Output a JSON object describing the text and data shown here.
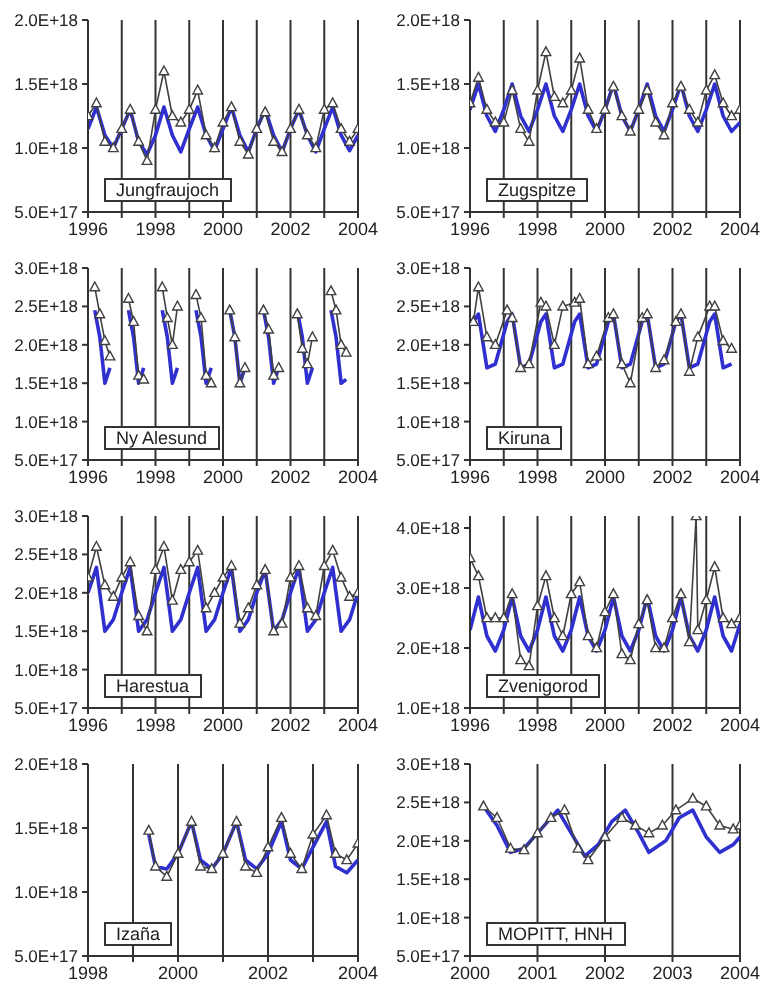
{
  "chart_data": [
    {
      "type": "line",
      "title": "Jungfraujoch",
      "grid": "x",
      "xlim": [
        1996,
        2004
      ],
      "xticks": [
        1996,
        {
          "value": 1997,
          "label": null
        },
        1998,
        {
          "value": 1999,
          "label": null
        },
        2000,
        {
          "value": 2001,
          "label": null
        },
        2002,
        {
          "value": 2003,
          "label": null
        },
        2004
      ],
      "ylim": [
        5e+17,
        2e+18
      ],
      "yticks": [
        {
          "value": 5e+17,
          "label": "5.0E+17"
        },
        {
          "value": 1e+18,
          "label": "1.0E+18"
        },
        {
          "value": 1.5e+18,
          "label": "1.5E+18"
        },
        {
          "value": 2e+18,
          "label": "2.0E+18"
        }
      ],
      "series": [
        {
          "color": "#3030d0",
          "marker": "none",
          "x": [
            1996,
            1996.25,
            1996.5,
            1996.75,
            1997,
            1997.25,
            1997.5,
            1997.75,
            1998,
            1998.25,
            1998.5,
            1998.75,
            1999,
            1999.25,
            1999.5,
            1999.75,
            2000,
            2000.25,
            2000.5,
            2000.75,
            2001,
            2001.25,
            2001.5,
            2001.75,
            2002,
            2002.25,
            2002.5,
            2002.75,
            2003,
            2003.25,
            2003.5,
            2003.75,
            2004
          ],
          "values": [
            1.15e+18,
            1.32e+18,
            1.1e+18,
            1e+18,
            1.15e+18,
            1.3e+18,
            1.05e+18,
            9.5e+17,
            1.1e+18,
            1.32e+18,
            1.1e+18,
            9.7e+17,
            1.15e+18,
            1.32e+18,
            1.1e+18,
            9.8e+17,
            1.15e+18,
            1.32e+18,
            1.1e+18,
            9.7e+17,
            1.15e+18,
            1.3e+18,
            1.1e+18,
            9.7e+17,
            1.15e+18,
            1.3e+18,
            1.1e+18,
            9.7e+17,
            1.15e+18,
            1.32e+18,
            1.1e+18,
            9.8e+17,
            1.1e+18
          ]
        },
        {
          "color": "#404040",
          "marker": "triangle",
          "x": [
            1996,
            1996.25,
            1996.5,
            1996.75,
            1997,
            1997.25,
            1997.5,
            1997.75,
            1998,
            1998.25,
            1998.5,
            1998.75,
            1999,
            1999.25,
            1999.5,
            1999.75,
            2000,
            2000.25,
            2000.5,
            2000.75,
            2001,
            2001.25,
            2001.5,
            2001.75,
            2002,
            2002.25,
            2002.5,
            2002.75,
            2003,
            2003.25,
            2003.5,
            2003.75,
            2004
          ],
          "values": [
            1.25e+18,
            1.35e+18,
            1.05e+18,
            1e+18,
            1.15e+18,
            1.3e+18,
            1.05e+18,
            9e+17,
            1.3e+18,
            1.6e+18,
            1.25e+18,
            1.2e+18,
            1.3e+18,
            1.45e+18,
            1.1e+18,
            1e+18,
            1.2e+18,
            1.32e+18,
            1.05e+18,
            9.5e+17,
            1.15e+18,
            1.28e+18,
            1.05e+18,
            9.7e+17,
            1.15e+18,
            1.3e+18,
            1.1e+18,
            1e+18,
            1.3e+18,
            1.35e+18,
            1.15e+18,
            1.05e+18,
            1.15e+18
          ]
        }
      ]
    },
    {
      "type": "line",
      "title": "Zugspitze",
      "grid": "x",
      "xlim": [
        1996,
        2004
      ],
      "xticks": [
        1996,
        {
          "value": 1997,
          "label": null
        },
        1998,
        {
          "value": 1999,
          "label": null
        },
        2000,
        {
          "value": 2001,
          "label": null
        },
        2002,
        {
          "value": 2003,
          "label": null
        },
        2004
      ],
      "ylim": [
        5e+17,
        2e+18
      ],
      "yticks": [
        {
          "value": 5e+17,
          "label": "5.0E+17"
        },
        {
          "value": 1e+18,
          "label": "1.0E+18"
        },
        {
          "value": 1.5e+18,
          "label": "1.5E+18"
        },
        {
          "value": 2e+18,
          "label": "2.0E+18"
        }
      ],
      "series": [
        {
          "color": "#3030d0",
          "marker": "none",
          "x": [
            1996,
            1996.25,
            1996.5,
            1996.75,
            1997,
            1997.25,
            1997.5,
            1997.75,
            1998,
            1998.25,
            1998.5,
            1998.75,
            1999,
            1999.25,
            1999.5,
            1999.75,
            2000,
            2000.25,
            2000.5,
            2000.75,
            2001,
            2001.25,
            2001.5,
            2001.75,
            2002,
            2002.25,
            2002.5,
            2002.75,
            2003,
            2003.25,
            2003.5,
            2003.75,
            2004
          ],
          "values": [
            1.3e+18,
            1.5e+18,
            1.25e+18,
            1.13e+18,
            1.3e+18,
            1.5e+18,
            1.25e+18,
            1.13e+18,
            1.3e+18,
            1.5e+18,
            1.25e+18,
            1.13e+18,
            1.3e+18,
            1.5e+18,
            1.25e+18,
            1.13e+18,
            1.3e+18,
            1.5e+18,
            1.25e+18,
            1.13e+18,
            1.3e+18,
            1.5e+18,
            1.25e+18,
            1.13e+18,
            1.3e+18,
            1.5e+18,
            1.25e+18,
            1.13e+18,
            1.3e+18,
            1.5e+18,
            1.25e+18,
            1.13e+18,
            1.2e+18
          ]
        },
        {
          "color": "#404040",
          "marker": "triangle",
          "x": [
            1996,
            1996.25,
            1996.5,
            1996.75,
            1997,
            1997.25,
            1997.5,
            1997.75,
            1998,
            1998.25,
            1998.5,
            1998.75,
            1999,
            1999.25,
            1999.5,
            1999.75,
            2000,
            2000.25,
            2000.5,
            2000.75,
            2001,
            2001.25,
            2001.5,
            2001.75,
            2002,
            2002.25,
            2002.5,
            2002.75,
            2003,
            2003.25,
            2003.5,
            2003.75,
            2004
          ],
          "values": [
            1.35e+18,
            1.55e+18,
            1.3e+18,
            1.2e+18,
            1.2e+18,
            1.45e+18,
            1.15e+18,
            1.05e+18,
            1.45e+18,
            1.75e+18,
            1.4e+18,
            1.35e+18,
            1.45e+18,
            1.7e+18,
            1.3e+18,
            1.15e+18,
            1.3e+18,
            1.48e+18,
            1.25e+18,
            1.13e+18,
            1.3e+18,
            1.45e+18,
            1.2e+18,
            1.1e+18,
            1.35e+18,
            1.48e+18,
            1.3e+18,
            1.2e+18,
            1.45e+18,
            1.57e+18,
            1.35e+18,
            1.25e+18,
            1.3e+18
          ]
        }
      ]
    },
    {
      "type": "line",
      "title": "Ny Alesund",
      "grid": "x",
      "xlim": [
        1996,
        2004
      ],
      "xticks": [
        1996,
        {
          "value": 1997,
          "label": null
        },
        1998,
        {
          "value": 1999,
          "label": null
        },
        2000,
        {
          "value": 2001,
          "label": null
        },
        2002,
        {
          "value": 2003,
          "label": null
        },
        2004
      ],
      "ylim": [
        5e+17,
        3e+18
      ],
      "yticks": [
        {
          "value": 5e+17,
          "label": "5.0E+17"
        },
        {
          "value": 1e+18,
          "label": "1.0E+18"
        },
        {
          "value": 1.5e+18,
          "label": "1.5E+18"
        },
        {
          "value": 2e+18,
          "label": "2.0E+18"
        },
        {
          "value": 2.5e+18,
          "label": "2.5E+18"
        },
        {
          "value": 3e+18,
          "label": "3.0E+18"
        }
      ],
      "series": [
        {
          "color": "#3030d0",
          "marker": "none",
          "x": [
            1996.2,
            1996.35,
            1996.5,
            1996.65,
            1996.85,
            1997.2,
            1997.35,
            1997.5,
            1997.65,
            1997.85,
            1998.2,
            1998.35,
            1998.5,
            1998.65,
            1998.85,
            1999.2,
            1999.35,
            1999.5,
            1999.65,
            1999.85,
            2000.2,
            2000.35,
            2000.5,
            2000.65,
            2000.85,
            2001.2,
            2001.35,
            2001.5,
            2001.65,
            2001.85,
            2002.2,
            2002.35,
            2002.5,
            2002.65,
            2002.85,
            2003.2,
            2003.35,
            2003.5,
            2003.65
          ],
          "values": [
            2.45e+18,
            2.1e+18,
            1.5e+18,
            1.7e+18,
            null,
            2.45e+18,
            2.1e+18,
            1.5e+18,
            1.7e+18,
            null,
            2.45e+18,
            2.1e+18,
            1.5e+18,
            1.7e+18,
            null,
            2.45e+18,
            2.1e+18,
            1.5e+18,
            1.7e+18,
            null,
            2.45e+18,
            2.1e+18,
            1.5e+18,
            1.7e+18,
            null,
            2.45e+18,
            2.1e+18,
            1.5e+18,
            1.7e+18,
            null,
            2.45e+18,
            2.1e+18,
            1.5e+18,
            1.7e+18,
            null,
            2.45e+18,
            2.1e+18,
            1.5e+18,
            1.55e+18
          ]
        },
        {
          "color": "#404040",
          "marker": "triangle",
          "x": [
            1996.2,
            1996.35,
            1996.5,
            1996.65,
            1996.85,
            1997.2,
            1997.35,
            1997.5,
            1997.65,
            1997.85,
            1998.2,
            1998.35,
            1998.5,
            1998.65,
            1998.85,
            1999.2,
            1999.35,
            1999.5,
            1999.65,
            1999.85,
            2000.2,
            2000.35,
            2000.5,
            2000.65,
            2000.85,
            2001.2,
            2001.35,
            2001.5,
            2001.65,
            2001.85,
            2002.2,
            2002.35,
            2002.5,
            2002.65,
            2002.85,
            2003.2,
            2003.35,
            2003.5,
            2003.65
          ],
          "values": [
            2.75e+18,
            2.4e+18,
            2.05e+18,
            1.85e+18,
            null,
            2.6e+18,
            2.3e+18,
            1.6e+18,
            1.55e+18,
            null,
            2.75e+18,
            2.35e+18,
            2e+18,
            2.5e+18,
            null,
            2.65e+18,
            2.35e+18,
            1.6e+18,
            1.5e+18,
            null,
            2.45e+18,
            2.1e+18,
            1.5e+18,
            1.7e+18,
            null,
            2.45e+18,
            2.2e+18,
            1.6e+18,
            1.7e+18,
            null,
            2.4e+18,
            1.95e+18,
            1.75e+18,
            2.1e+18,
            null,
            2.7e+18,
            2.45e+18,
            2e+18,
            1.9e+18
          ]
        }
      ]
    },
    {
      "type": "line",
      "title": "Kiruna",
      "grid": "x",
      "xlim": [
        1996,
        2004
      ],
      "xticks": [
        1996,
        {
          "value": 1997,
          "label": null
        },
        1998,
        {
          "value": 1999,
          "label": null
        },
        2000,
        {
          "value": 2001,
          "label": null
        },
        2002,
        {
          "value": 2003,
          "label": null
        },
        2004
      ],
      "ylim": [
        5e+17,
        3e+18
      ],
      "yticks": [
        {
          "value": 5e+17,
          "label": "5.0E+17"
        },
        {
          "value": 1e+18,
          "label": "1.0E+18"
        },
        {
          "value": 1.5e+18,
          "label": "1.5E+18"
        },
        {
          "value": 2e+18,
          "label": "2.0E+18"
        },
        {
          "value": 2.5e+18,
          "label": "2.5E+18"
        },
        {
          "value": 3e+18,
          "label": "3.0E+18"
        }
      ],
      "series": [
        {
          "color": "#3030d0",
          "marker": "none",
          "x": [
            1996.1,
            1996.25,
            1996.5,
            1996.75,
            1997.1,
            1997.25,
            1997.5,
            1997.75,
            1998.1,
            1998.25,
            1998.5,
            1998.75,
            1999.1,
            1999.25,
            1999.5,
            1999.75,
            2000.1,
            2000.25,
            2000.5,
            2000.75,
            2001.1,
            2001.25,
            2001.5,
            2001.75,
            2002.1,
            2002.25,
            2002.5,
            2002.75,
            2003.1,
            2003.25,
            2003.5,
            2003.75
          ],
          "values": [
            2.3e+18,
            2.4e+18,
            1.7e+18,
            1.75e+18,
            2.3e+18,
            2.4e+18,
            1.7e+18,
            1.75e+18,
            2.3e+18,
            2.4e+18,
            1.7e+18,
            1.75e+18,
            2.3e+18,
            2.4e+18,
            1.7e+18,
            1.75e+18,
            2.3e+18,
            2.4e+18,
            1.7e+18,
            1.75e+18,
            2.3e+18,
            2.4e+18,
            1.7e+18,
            1.75e+18,
            2.3e+18,
            2.4e+18,
            1.7e+18,
            1.75e+18,
            2.3e+18,
            2.4e+18,
            1.7e+18,
            1.75e+18
          ]
        },
        {
          "color": "#404040",
          "marker": "triangle",
          "x": [
            1996.1,
            1996.25,
            1996.5,
            1996.75,
            1997.1,
            1997.25,
            1997.5,
            1997.75,
            1998.1,
            1998.25,
            1998.5,
            1998.75,
            1999.1,
            1999.25,
            1999.5,
            1999.75,
            2000.1,
            2000.25,
            2000.5,
            2000.75,
            2001.1,
            2001.25,
            2001.5,
            2001.75,
            2002.1,
            2002.25,
            2002.5,
            2002.75,
            2003.1,
            2003.25,
            2003.5,
            2003.75
          ],
          "values": [
            2.3e+18,
            2.75e+18,
            2.1e+18,
            2e+18,
            2.45e+18,
            2.35e+18,
            1.7e+18,
            1.75e+18,
            2.55e+18,
            2.5e+18,
            2e+18,
            2.5e+18,
            2.55e+18,
            2.6e+18,
            1.75e+18,
            1.85e+18,
            2.35e+18,
            2.4e+18,
            1.75e+18,
            1.5e+18,
            2.35e+18,
            2.4e+18,
            1.7e+18,
            1.8e+18,
            2.3e+18,
            2.4e+18,
            1.65e+18,
            2.1e+18,
            2.5e+18,
            2.5e+18,
            2.05e+18,
            1.95e+18
          ]
        }
      ]
    },
    {
      "type": "line",
      "title": "Harestua",
      "grid": "x",
      "xlim": [
        1996,
        2004
      ],
      "xticks": [
        1996,
        {
          "value": 1997,
          "label": null
        },
        1998,
        {
          "value": 1999,
          "label": null
        },
        2000,
        {
          "value": 2001,
          "label": null
        },
        2002,
        {
          "value": 2003,
          "label": null
        },
        2004
      ],
      "ylim": [
        5e+17,
        3e+18
      ],
      "yticks": [
        {
          "value": 5e+17,
          "label": "5.0E+17"
        },
        {
          "value": 1e+18,
          "label": "1.0E+18"
        },
        {
          "value": 1.5e+18,
          "label": "1.5E+18"
        },
        {
          "value": 2e+18,
          "label": "2.0E+18"
        },
        {
          "value": 2.5e+18,
          "label": "2.5E+18"
        },
        {
          "value": 3e+18,
          "label": "3.0E+18"
        }
      ],
      "series": [
        {
          "color": "#3030d0",
          "marker": "none",
          "x": [
            1996,
            1996.25,
            1996.5,
            1996.75,
            1997,
            1997.25,
            1997.5,
            1997.75,
            1998,
            1998.25,
            1998.5,
            1998.75,
            1999,
            1999.25,
            1999.5,
            1999.75,
            2000,
            2000.25,
            2000.5,
            2000.75,
            2001,
            2001.25,
            2001.5,
            2001.75,
            2002,
            2002.25,
            2002.5,
            2002.75,
            2003,
            2003.25,
            2003.5,
            2003.75,
            2004
          ],
          "values": [
            2e+18,
            2.33e+18,
            1.5e+18,
            1.65e+18,
            2e+18,
            2.33e+18,
            1.5e+18,
            1.65e+18,
            2e+18,
            2.33e+18,
            1.5e+18,
            1.65e+18,
            2e+18,
            2.33e+18,
            1.5e+18,
            1.65e+18,
            2e+18,
            2.33e+18,
            1.5e+18,
            1.65e+18,
            2e+18,
            2.3e+18,
            1.5e+18,
            1.65e+18,
            2e+18,
            2.33e+18,
            1.5e+18,
            1.65e+18,
            2e+18,
            2.33e+18,
            1.5e+18,
            1.65e+18,
            2e+18
          ]
        },
        {
          "color": "#404040",
          "marker": "triangle",
          "x": [
            1996,
            1996.25,
            1996.5,
            1996.75,
            1997,
            1997.25,
            1997.5,
            1997.75,
            1998,
            1998.25,
            1998.5,
            1998.75,
            1999,
            1999.25,
            1999.5,
            1999.75,
            2000,
            2000.25,
            2000.5,
            2000.75,
            2001,
            2001.25,
            2001.5,
            2001.75,
            2002,
            2002.25,
            2002.5,
            2002.75,
            2003,
            2003.25,
            2003.5,
            2003.75,
            2004
          ],
          "values": [
            2.2e+18,
            2.6e+18,
            2.1e+18,
            1.95e+18,
            2.2e+18,
            2.4e+18,
            1.7e+18,
            1.5e+18,
            2.3e+18,
            2.6e+18,
            1.9e+18,
            2.3e+18,
            2.4e+18,
            2.55e+18,
            1.8e+18,
            2e+18,
            2.2e+18,
            2.35e+18,
            1.6e+18,
            1.8e+18,
            2.1e+18,
            2.3e+18,
            1.5e+18,
            1.6e+18,
            2.2e+18,
            2.35e+18,
            1.8e+18,
            1.7e+18,
            2.35e+18,
            2.55e+18,
            2.2e+18,
            1.95e+18,
            2e+18
          ]
        }
      ]
    },
    {
      "type": "line",
      "title": "Zvenigorod",
      "grid": "x",
      "xlim": [
        1996,
        2004
      ],
      "xticks": [
        1996,
        {
          "value": 1997,
          "label": null
        },
        1998,
        {
          "value": 1999,
          "label": null
        },
        2000,
        {
          "value": 2001,
          "label": null
        },
        2002,
        {
          "value": 2003,
          "label": null
        },
        2004
      ],
      "ylim": [
        1e+18,
        4.2e+18
      ],
      "yticks": [
        {
          "value": 1e+18,
          "label": "1.0E+18"
        },
        {
          "value": 2e+18,
          "label": "2.0E+18"
        },
        {
          "value": 3e+18,
          "label": "3.0E+18"
        },
        {
          "value": 4e+18,
          "label": "4.0E+18"
        }
      ],
      "series": [
        {
          "color": "#3030d0",
          "marker": "none",
          "x": [
            1996,
            1996.25,
            1996.5,
            1996.75,
            1997,
            1997.25,
            1997.5,
            1997.75,
            1998,
            1998.25,
            1998.5,
            1998.75,
            1999,
            1999.25,
            1999.5,
            1999.75,
            2000,
            2000.25,
            2000.5,
            2000.75,
            2001,
            2001.25,
            2001.5,
            2001.75,
            2002,
            2002.25,
            2002.5,
            2002.75,
            2003,
            2003.25,
            2003.5,
            2003.75,
            2004
          ],
          "values": [
            2.3e+18,
            2.85e+18,
            2.2e+18,
            1.95e+18,
            2.3e+18,
            2.85e+18,
            2.2e+18,
            1.95e+18,
            2.3e+18,
            2.85e+18,
            2.2e+18,
            1.95e+18,
            2.3e+18,
            2.85e+18,
            2.2e+18,
            1.95e+18,
            2.3e+18,
            2.85e+18,
            2.2e+18,
            1.95e+18,
            2.3e+18,
            2.85e+18,
            2.2e+18,
            1.95e+18,
            2.3e+18,
            2.85e+18,
            2.2e+18,
            1.95e+18,
            2.3e+18,
            2.85e+18,
            2.2e+18,
            1.95e+18,
            2.4e+18
          ]
        },
        {
          "color": "#404040",
          "marker": "triangle",
          "x": [
            1996,
            1996.25,
            1996.5,
            1996.75,
            1997,
            1997.25,
            1997.5,
            1997.75,
            1998,
            1998.25,
            1998.5,
            1998.75,
            1999,
            1999.25,
            1999.5,
            1999.75,
            2000,
            2000.25,
            2000.5,
            2000.75,
            2001,
            2001.25,
            2001.5,
            2001.75,
            2002,
            2002.25,
            2002.5,
            2002.7,
            2002.75,
            2003,
            2003.25,
            2003.5,
            2003.75,
            2004
          ],
          "values": [
            3.5e+18,
            3.2e+18,
            2.5e+18,
            2.5e+18,
            2.5e+18,
            2.9e+18,
            1.8e+18,
            1.7e+18,
            2.7e+18,
            3.2e+18,
            2.5e+18,
            2.2e+18,
            2.9e+18,
            3.1e+18,
            2.2e+18,
            2e+18,
            2.6e+18,
            2.9e+18,
            1.9e+18,
            1.8e+18,
            2.4e+18,
            2.8e+18,
            2e+18,
            2e+18,
            2.5e+18,
            2.9e+18,
            2.1e+18,
            4.2e+18,
            2.3e+18,
            2.8e+18,
            3.35e+18,
            2.5e+18,
            2.4e+18,
            2.5e+18
          ]
        }
      ]
    },
    {
      "type": "line",
      "title": "Izaña",
      "grid": "x",
      "xlim": [
        1998,
        2004
      ],
      "xticks": [
        1998,
        {
          "value": 1999,
          "label": null
        },
        2000,
        {
          "value": 2001,
          "label": null
        },
        2002,
        {
          "value": 2003,
          "label": null
        },
        2004
      ],
      "ylim": [
        5e+17,
        2e+18
      ],
      "yticks": [
        {
          "value": 5e+17,
          "label": "5.0E+17"
        },
        {
          "value": 1e+18,
          "label": "1.0E+18"
        },
        {
          "value": 1.5e+18,
          "label": "1.5E+18"
        },
        {
          "value": 2e+18,
          "label": "2.0E+18"
        }
      ],
      "series": [
        {
          "color": "#3030d0",
          "marker": "none",
          "x": [
            1999.35,
            1999.5,
            1999.75,
            2000,
            2000.3,
            2000.5,
            2000.75,
            2001,
            2001.3,
            2001.5,
            2001.75,
            2002,
            2002.3,
            2002.5,
            2002.75,
            2003,
            2003.3,
            2003.5,
            2003.75,
            2004
          ],
          "values": [
            1.45e+18,
            1.2e+18,
            1.18e+18,
            1.3e+18,
            1.55e+18,
            1.25e+18,
            1.18e+18,
            1.3e+18,
            1.55e+18,
            1.25e+18,
            1.18e+18,
            1.3e+18,
            1.55e+18,
            1.25e+18,
            1.18e+18,
            1.35e+18,
            1.55e+18,
            1.2e+18,
            1.15e+18,
            1.25e+18
          ]
        },
        {
          "color": "#404040",
          "marker": "triangle",
          "x": [
            1999.35,
            1999.5,
            1999.75,
            2000,
            2000.3,
            2000.5,
            2000.75,
            2001,
            2001.3,
            2001.5,
            2001.75,
            2002,
            2002.3,
            2002.5,
            2002.75,
            2003,
            2003.3,
            2003.5,
            2003.75,
            2004
          ],
          "values": [
            1.48e+18,
            1.2e+18,
            1.12e+18,
            1.3e+18,
            1.55e+18,
            1.2e+18,
            1.18e+18,
            1.3e+18,
            1.55e+18,
            1.2e+18,
            1.15e+18,
            1.35e+18,
            1.58e+18,
            1.3e+18,
            1.18e+18,
            1.45e+18,
            1.6e+18,
            1.3e+18,
            1.25e+18,
            1.38e+18
          ]
        }
      ]
    },
    {
      "type": "line",
      "title": "MOPITT, HNH",
      "grid": "x",
      "xlim": [
        2000,
        2004
      ],
      "xticks": [
        2000,
        2001,
        2002,
        2003,
        2004
      ],
      "ylim": [
        5e+17,
        3e+18
      ],
      "yticks": [
        {
          "value": 5e+17,
          "label": "5.0E+17"
        },
        {
          "value": 1e+18,
          "label": "1.0E+18"
        },
        {
          "value": 1.5e+18,
          "label": "1.5E+18"
        },
        {
          "value": 2e+18,
          "label": "2.0E+18"
        },
        {
          "value": 2.5e+18,
          "label": "2.5E+18"
        },
        {
          "value": 3e+18,
          "label": "3.0E+18"
        }
      ],
      "series": [
        {
          "color": "#3030d0",
          "marker": "none",
          "x": [
            2000.2,
            2000.4,
            2000.6,
            2000.8,
            2001,
            2001.3,
            2001.5,
            2001.7,
            2001.9,
            2002.1,
            2002.3,
            2002.5,
            2002.65,
            2002.9,
            2003.1,
            2003.3,
            2003.5,
            2003.7,
            2003.9,
            2004
          ],
          "values": [
            2.45e+18,
            2.2e+18,
            1.85e+18,
            1.9e+18,
            2.1e+18,
            2.4e+18,
            2.1e+18,
            1.8e+18,
            1.95e+18,
            2.25e+18,
            2.4e+18,
            2.1e+18,
            1.85e+18,
            2e+18,
            2.3e+18,
            2.4e+18,
            2.05e+18,
            1.85e+18,
            1.95e+18,
            2.05e+18
          ]
        },
        {
          "color": "#404040",
          "marker": "triangle",
          "x": [
            2000.2,
            2000.4,
            2000.6,
            2000.8,
            2001,
            2001.2,
            2001.4,
            2001.6,
            2001.75,
            2002,
            2002.25,
            2002.45,
            2002.65,
            2002.85,
            2003.05,
            2003.3,
            2003.5,
            2003.7,
            2003.9,
            2004
          ],
          "values": [
            2.45e+18,
            2.3e+18,
            1.9e+18,
            1.88e+18,
            2.1e+18,
            2.3e+18,
            2.4e+18,
            1.9e+18,
            1.75e+18,
            2.05e+18,
            2.3e+18,
            2.2e+18,
            2.1e+18,
            2.2e+18,
            2.4e+18,
            2.55e+18,
            2.45e+18,
            2.2e+18,
            2.15e+18,
            2.2e+18
          ]
        }
      ]
    }
  ]
}
